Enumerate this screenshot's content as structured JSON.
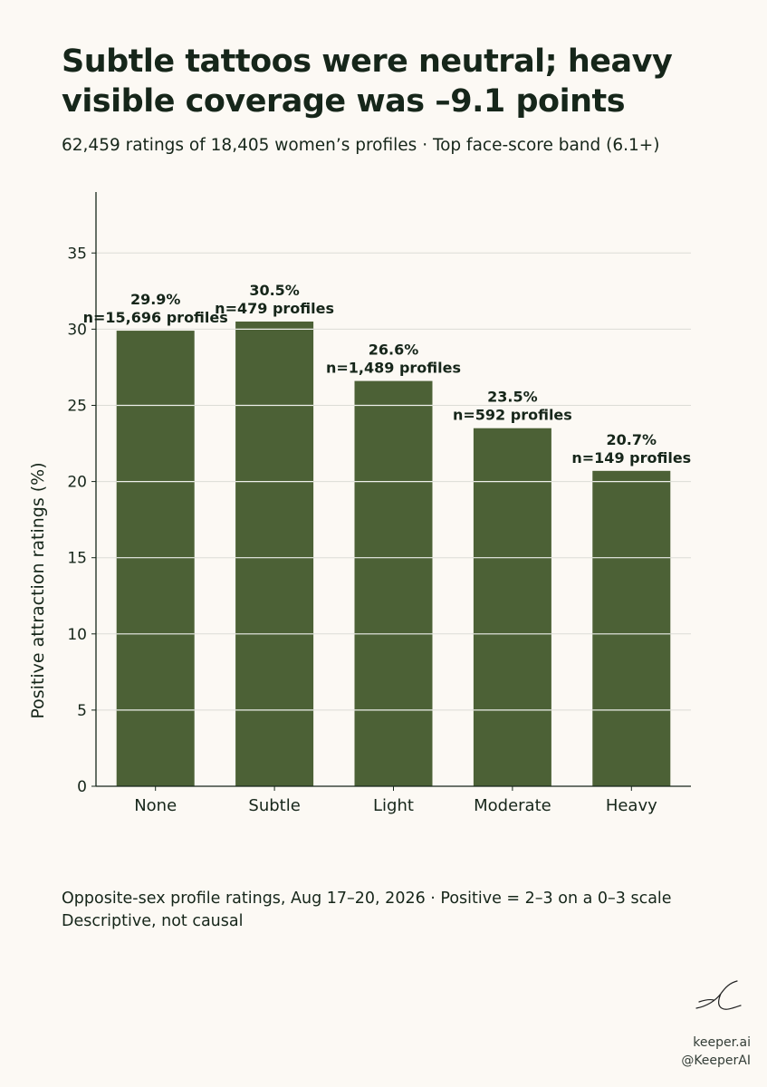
{
  "title": "Subtle tattoos were neutral; heavy visible coverage was –9.1 points",
  "subtitle": "62,459 ratings of 18,405 women’s profiles · Top face-score band (6.1+)",
  "footnote": {
    "line1": "Opposite-sex profile ratings, Aug 17–20, 2026  ·  Positive = 2–3 on a 0–3 scale",
    "line2": "Descriptive, not causal"
  },
  "brand": {
    "site": "keeper.ai",
    "handle": "@KeeperAI"
  },
  "colors": {
    "bar": "#4c6136",
    "background": "#fcf9f4",
    "text": "#16261a",
    "grid": "#dcdcd6"
  },
  "chart_data": {
    "type": "bar",
    "categories": [
      "None",
      "Subtle",
      "Light",
      "Moderate",
      "Heavy"
    ],
    "values": [
      29.9,
      30.5,
      26.6,
      23.5,
      20.7
    ],
    "value_labels": [
      "29.9%",
      "30.5%",
      "26.6%",
      "23.5%",
      "20.7%"
    ],
    "n_labels": [
      "n=15,696 profiles",
      "n=479 profiles",
      "n=1,489 profiles",
      "n=592 profiles",
      "n=149 profiles"
    ],
    "ylabel": "Positive attraction ratings (%)",
    "xlabel": "",
    "ylim": [
      0,
      39
    ],
    "yticks": [
      0,
      5,
      10,
      15,
      20,
      25,
      30,
      35
    ],
    "grid": true,
    "legend": "none"
  }
}
